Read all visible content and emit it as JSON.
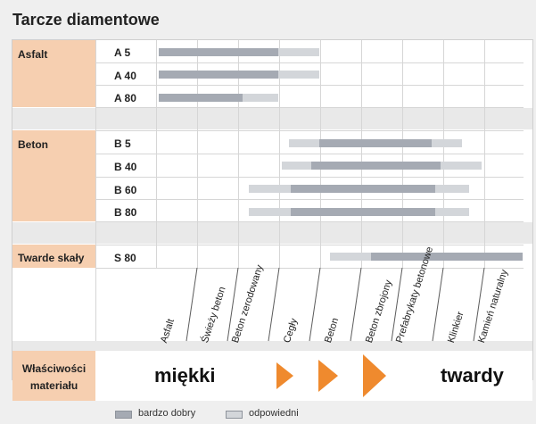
{
  "title": "Tarcze diamentowe",
  "categories": [
    "Asfalt",
    "Beton",
    "Twarde skały"
  ],
  "codes": [
    "A 5",
    "A 40",
    "A 80",
    "B 5",
    "B 40",
    "B 60",
    "B 80",
    "S 80"
  ],
  "materials": [
    "Asfalt",
    "Świeży beton",
    "Beton zerodowany",
    "Cegły",
    "Beton",
    "Beton zbrojony",
    "Prefabrykaty betonowe",
    "Klinkier",
    "Kamień naturalny"
  ],
  "properties": {
    "label_line1": "Właściwości",
    "label_line2": "materiału",
    "soft": "miękki",
    "hard": "twardy"
  },
  "legend": {
    "very_good": "bardzo dobry",
    "suitable": "odpowiedni"
  },
  "colors": {
    "very_good": "#a5aab3",
    "suitable": "#d3d6da",
    "category_bg": "#f6cfb0",
    "arrow": "#ef8a2e"
  },
  "suitability_ranges": [
    {
      "code": "A 5",
      "suitable": [
        "Asfalt",
        "Cegły"
      ],
      "very_good": [
        "Asfalt",
        "Beton zerodowany"
      ]
    },
    {
      "code": "A 40",
      "suitable": [
        "Asfalt",
        "Cegły"
      ],
      "very_good": [
        "Asfalt",
        "Beton zerodowany"
      ]
    },
    {
      "code": "A 80",
      "suitable": [
        "Asfalt",
        "Beton zerodowany"
      ],
      "very_good": [
        "Asfalt",
        "Świeży beton"
      ]
    },
    {
      "code": "B 5",
      "suitable": [
        "Cegły",
        "Prefabrykaty betonowe"
      ],
      "very_good": [
        "Cegły",
        "Prefabrykaty betonowe"
      ]
    },
    {
      "code": "B 40",
      "suitable": [
        "Cegły",
        "Klinkier"
      ],
      "very_good": [
        "Cegły",
        "Prefabrykaty betonowe"
      ]
    },
    {
      "code": "B 60",
      "suitable": [
        "Beton zerodowany",
        "Klinkier"
      ],
      "very_good": [
        "Cegły",
        "Prefabrykaty betonowe"
      ]
    },
    {
      "code": "B 80",
      "suitable": [
        "Beton zerodowany",
        "Klinkier"
      ],
      "very_good": [
        "Cegły",
        "Prefabrykaty betonowe"
      ]
    },
    {
      "code": "S 80",
      "suitable": [
        "Beton",
        "Kamień naturalny"
      ],
      "very_good": [
        "Beton zbrojony",
        "Kamień naturalny"
      ]
    }
  ]
}
